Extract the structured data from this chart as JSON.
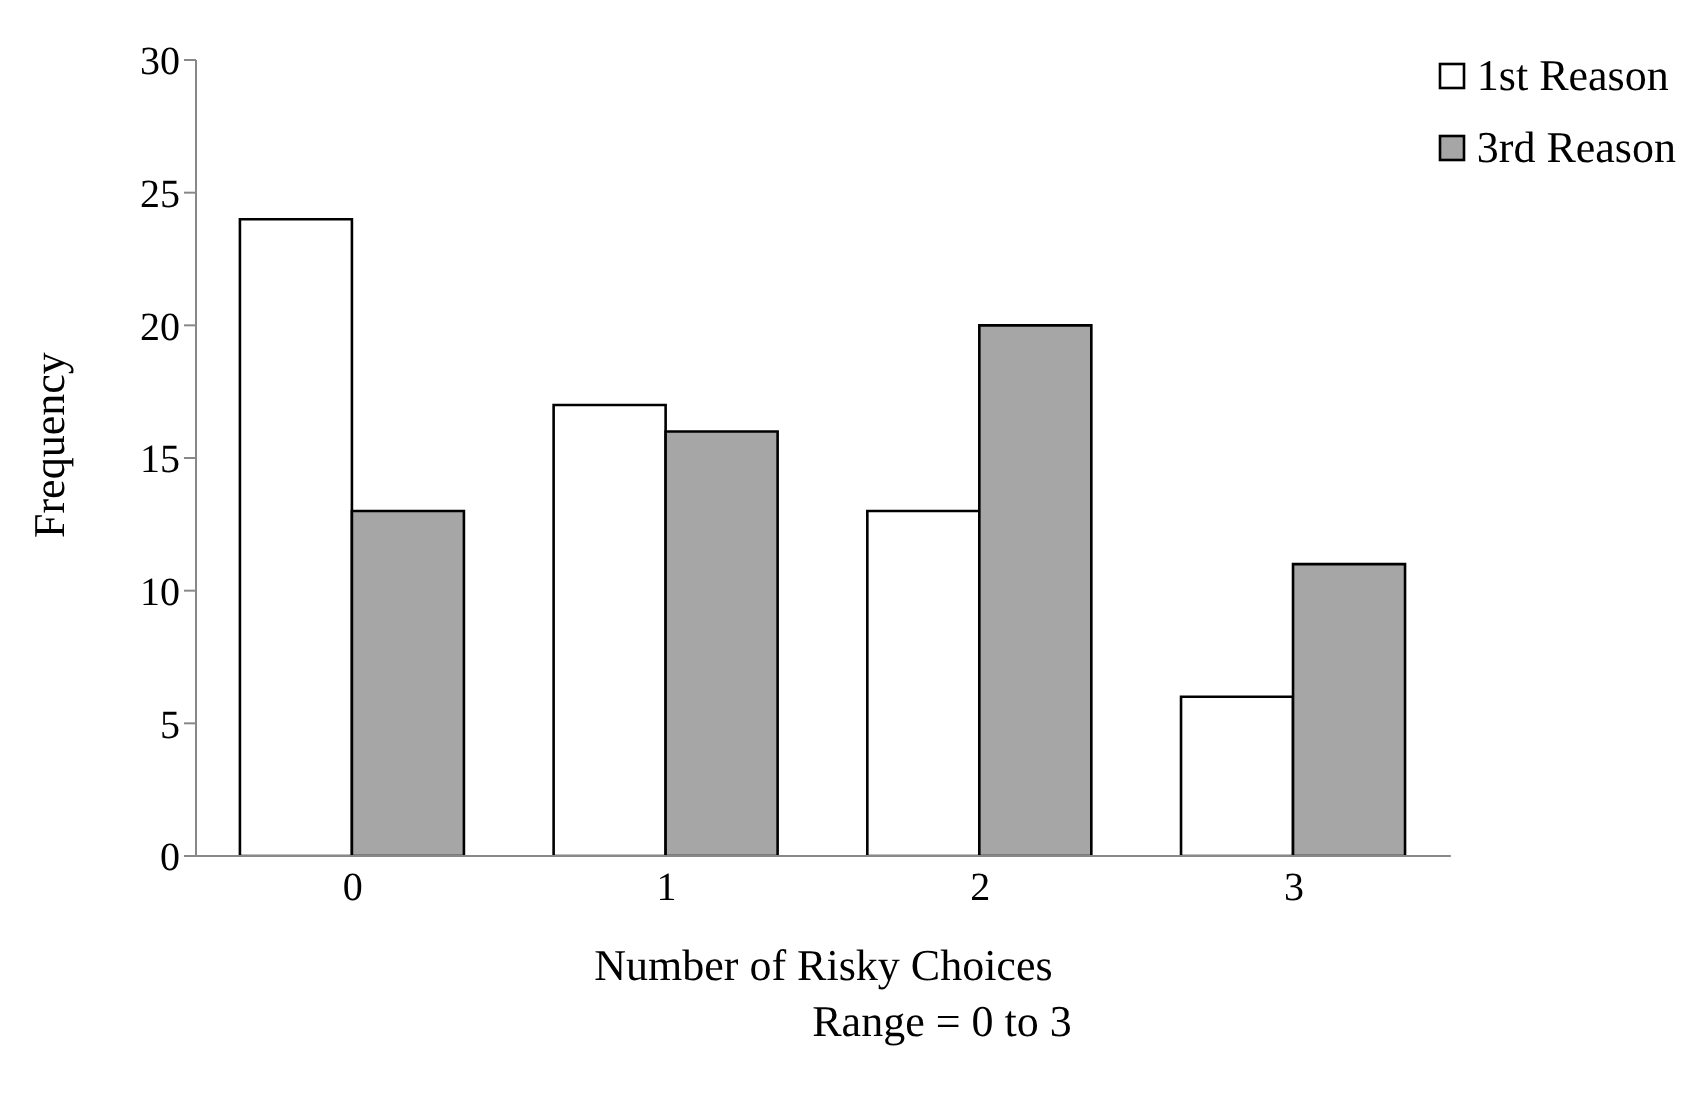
{
  "chart_data": {
    "type": "bar",
    "xlabel": "Number of Risky Choices",
    "ylabel": "Frequency",
    "annotations": [
      "Range = 0 to 3"
    ],
    "categories": [
      "0",
      "1",
      "2",
      "3"
    ],
    "series": [
      {
        "name": "1st Reason",
        "color": "#ffffff",
        "values": [
          24,
          17,
          13,
          6
        ]
      },
      {
        "name": "3rd Reason",
        "color": "#a6a6a6",
        "values": [
          13,
          16,
          20,
          11
        ]
      }
    ],
    "ylim": [
      0,
      30
    ],
    "yticks": [
      0,
      5,
      10,
      15,
      20,
      25,
      30
    ],
    "grid": false,
    "legend": "top right"
  }
}
